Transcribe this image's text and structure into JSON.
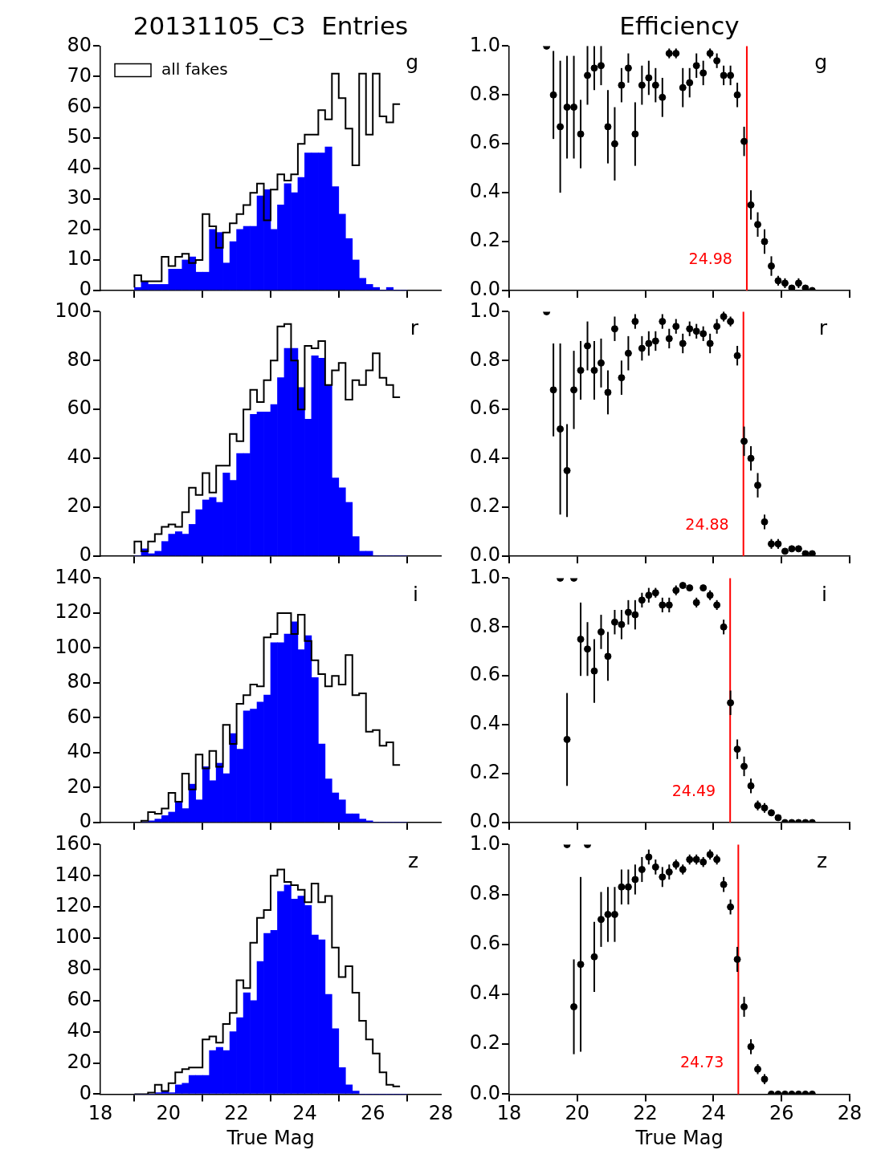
{
  "chart_data": [
    {
      "type": "histogram",
      "title": "20131105_C3  Entries",
      "bins": [
        19.0,
        19.2,
        19.4,
        19.6,
        19.8,
        20.0,
        20.2,
        20.4,
        20.6,
        20.8,
        21.0,
        21.2,
        21.4,
        21.6,
        21.8,
        22.0,
        22.2,
        22.4,
        22.6,
        22.8,
        23.0,
        23.2,
        23.4,
        23.6,
        23.8,
        24.0,
        24.2,
        24.4,
        24.6,
        24.8,
        25.0,
        25.2,
        25.4,
        25.6,
        25.8,
        26.0,
        26.2,
        26.4,
        26.6,
        26.8,
        27.0
      ],
      "series": [
        {
          "name": "all fakes",
          "type": "step",
          "color": "#000000",
          "x": [
            19.0,
            19.2,
            19.4,
            19.6,
            19.8,
            20.0,
            20.2,
            20.4,
            20.6,
            20.8,
            21.0,
            21.2,
            21.4,
            21.6,
            21.8,
            22.0,
            22.2,
            22.4,
            22.6,
            22.8,
            23.0,
            23.2,
            23.4,
            23.6,
            23.8,
            24.0,
            24.2,
            24.4,
            24.6,
            24.8,
            25.0,
            25.2,
            25.4,
            25.6,
            25.8,
            26.0,
            26.2,
            26.4,
            26.6,
            26.8
          ],
          "values": [
            1,
            5,
            3,
            3,
            3,
            11,
            8,
            11,
            12,
            9,
            10,
            25,
            21,
            14,
            19,
            22,
            25,
            28,
            32,
            35,
            23,
            33,
            38,
            36,
            38,
            48,
            51,
            51,
            59,
            56,
            71,
            63,
            53,
            41,
            71,
            51,
            71,
            57,
            55,
            61
          ]
        },
        {
          "color": "#0000ff",
          "values": [
            1,
            3,
            2,
            2,
            2,
            7,
            7,
            10,
            11,
            6,
            6,
            20,
            19,
            9,
            16,
            20,
            21,
            21,
            31,
            33,
            20,
            28,
            35,
            32,
            37,
            45,
            45,
            45,
            47,
            34,
            25,
            17,
            10,
            4,
            2,
            1,
            0,
            1,
            0,
            0
          ]
        }
      ],
      "xlim": [
        18,
        28
      ],
      "xticks": [
        18,
        20,
        22,
        24,
        26,
        28
      ],
      "ylim": [
        0,
        80
      ],
      "yticks": [
        0,
        10,
        20,
        30,
        40,
        50,
        60,
        70,
        80
      ],
      "tick_labels": "y",
      "legend": "top left",
      "annotations": [
        "g"
      ]
    },
    {
      "type": "scatter",
      "title": "Efficiency",
      "x": [
        19.1,
        19.3,
        19.5,
        19.7,
        19.9,
        20.1,
        20.3,
        20.5,
        20.7,
        20.9,
        21.1,
        21.3,
        21.5,
        21.7,
        21.9,
        22.1,
        22.3,
        22.5,
        22.7,
        22.9,
        23.1,
        23.3,
        23.5,
        23.7,
        23.9,
        24.1,
        24.3,
        24.5,
        24.7,
        24.9,
        25.1,
        25.3,
        25.5,
        25.7,
        25.9,
        26.1,
        26.3,
        26.5,
        26.7,
        26.9
      ],
      "series": [
        {
          "color": "#000000",
          "values": [
            1.0,
            0.8,
            0.67,
            0.75,
            0.75,
            0.64,
            0.88,
            0.91,
            0.92,
            0.67,
            0.6,
            0.84,
            0.91,
            0.64,
            0.84,
            0.87,
            0.84,
            0.79,
            0.97,
            0.97,
            0.83,
            0.85,
            0.92,
            0.89,
            0.97,
            0.94,
            0.88,
            0.88,
            0.8,
            0.61,
            0.35,
            0.27,
            0.2,
            0.1,
            0.04,
            0.03,
            0.01,
            0.03,
            0.01,
            0.0
          ],
          "errors": [
            null,
            0.18,
            0.27,
            0.21,
            0.21,
            0.14,
            0.12,
            0.09,
            0.08,
            0.15,
            0.15,
            0.07,
            0.06,
            0.13,
            0.08,
            0.07,
            0.07,
            0.08,
            0.02,
            0.02,
            0.08,
            0.06,
            0.05,
            0.05,
            0.02,
            0.03,
            0.04,
            0.04,
            0.05,
            0.06,
            0.06,
            0.05,
            0.05,
            0.04,
            0.02,
            0.02,
            0.01,
            0.02,
            null,
            null
          ]
        }
      ],
      "xlim": [
        18,
        28
      ],
      "xticks": [
        18,
        20,
        22,
        24,
        26,
        28
      ],
      "ylim": [
        0,
        1
      ],
      "yticks": [
        {
          "value": 0,
          "label": "0.0"
        },
        {
          "value": 0.2,
          "label": "0.2"
        },
        {
          "value": 0.4,
          "label": "0.4"
        },
        {
          "value": 0.6,
          "label": "0.6"
        },
        {
          "value": 0.8,
          "label": "0.8"
        },
        {
          "value": 1,
          "label": "1.0"
        }
      ],
      "tick_labels": "y",
      "marker": "circle",
      "ref_lines": [
        {
          "axis": "x",
          "value": 24.98,
          "label": "24.98",
          "color": "#ff0000"
        }
      ],
      "annotations": [
        "g"
      ]
    },
    {
      "type": "histogram",
      "bins": [
        19.0,
        19.2,
        19.4,
        19.6,
        19.8,
        20.0,
        20.2,
        20.4,
        20.6,
        20.8,
        21.0,
        21.2,
        21.4,
        21.6,
        21.8,
        22.0,
        22.2,
        22.4,
        22.6,
        22.8,
        23.0,
        23.2,
        23.4,
        23.6,
        23.8,
        24.0,
        24.2,
        24.4,
        24.6,
        24.8,
        25.0,
        25.2,
        25.4,
        25.6,
        25.8,
        26.0,
        26.2,
        26.4,
        26.6,
        26.8,
        27.0
      ],
      "series": [
        {
          "type": "step",
          "color": "#000000",
          "x": [
            19.0,
            19.2,
            19.4,
            19.6,
            19.8,
            20.0,
            20.2,
            20.4,
            20.6,
            20.8,
            21.0,
            21.2,
            21.4,
            21.6,
            21.8,
            22.0,
            22.2,
            22.4,
            22.6,
            22.8,
            23.0,
            23.2,
            23.4,
            23.6,
            23.8,
            24.0,
            24.2,
            24.4,
            24.6,
            24.8,
            25.0,
            25.2,
            25.4,
            25.6,
            25.8,
            26.0,
            26.2,
            26.4,
            26.6,
            26.8
          ],
          "values": [
            1,
            6,
            2,
            6,
            9,
            12,
            13,
            12,
            18,
            28,
            25,
            34,
            26,
            37,
            37,
            50,
            47,
            60,
            68,
            63,
            72,
            80,
            94,
            95,
            80,
            60,
            86,
            85,
            88,
            70,
            76,
            79,
            64,
            72,
            70,
            76,
            83,
            73,
            70,
            65
          ]
        },
        {
          "color": "#0000ff",
          "values": [
            0,
            3,
            1,
            2,
            6,
            9,
            10,
            9,
            13,
            19,
            23,
            24,
            22,
            34,
            31,
            42,
            42,
            58,
            59,
            59,
            62,
            73,
            85,
            85,
            69,
            56,
            82,
            81,
            70,
            32,
            28,
            22,
            8,
            2,
            2,
            0,
            0,
            0,
            0,
            0
          ]
        }
      ],
      "xlim": [
        18,
        28
      ],
      "xticks": [
        18,
        20,
        22,
        24,
        26,
        28
      ],
      "ylim": [
        0,
        100
      ],
      "yticks": [
        0,
        20,
        40,
        60,
        80,
        100
      ],
      "tick_labels": "y",
      "annotations": [
        "r"
      ]
    },
    {
      "type": "scatter",
      "x": [
        19.1,
        19.3,
        19.5,
        19.7,
        19.9,
        20.1,
        20.3,
        20.5,
        20.7,
        20.9,
        21.1,
        21.3,
        21.5,
        21.7,
        21.9,
        22.1,
        22.3,
        22.5,
        22.7,
        22.9,
        23.1,
        23.3,
        23.5,
        23.7,
        23.9,
        24.1,
        24.3,
        24.5,
        24.7,
        24.9,
        25.1,
        25.3,
        25.5,
        25.7,
        25.9,
        26.1,
        26.3,
        26.5,
        26.7,
        26.9
      ],
      "series": [
        {
          "color": "#000000",
          "values": [
            1.0,
            0.68,
            0.52,
            0.35,
            0.68,
            0.76,
            0.86,
            0.76,
            0.79,
            0.67,
            0.93,
            0.73,
            0.83,
            0.96,
            0.85,
            0.87,
            0.88,
            0.96,
            0.89,
            0.94,
            0.87,
            0.93,
            0.92,
            0.91,
            0.87,
            0.94,
            0.98,
            0.96,
            0.82,
            0.47,
            0.4,
            0.29,
            0.14,
            0.05,
            0.05,
            0.02,
            0.03,
            0.03,
            0.01,
            0.01
          ],
          "errors": [
            null,
            0.19,
            0.35,
            0.19,
            0.16,
            0.12,
            0.1,
            0.12,
            0.1,
            0.09,
            0.05,
            0.07,
            0.07,
            0.03,
            0.05,
            0.05,
            0.04,
            0.03,
            0.04,
            0.03,
            0.04,
            0.03,
            0.03,
            0.03,
            0.04,
            0.03,
            0.02,
            0.02,
            0.04,
            0.06,
            0.05,
            0.05,
            0.03,
            0.02,
            0.02,
            null,
            null,
            null,
            null,
            null
          ]
        }
      ],
      "xlim": [
        18,
        28
      ],
      "xticks": [
        18,
        20,
        22,
        24,
        26,
        28
      ],
      "ylim": [
        0,
        1
      ],
      "yticks": [
        {
          "value": 0,
          "label": "0.0"
        },
        {
          "value": 0.2,
          "label": "0.2"
        },
        {
          "value": 0.4,
          "label": "0.4"
        },
        {
          "value": 0.6,
          "label": "0.6"
        },
        {
          "value": 0.8,
          "label": "0.8"
        },
        {
          "value": 1,
          "label": "1.0"
        }
      ],
      "tick_labels": "y",
      "marker": "circle",
      "ref_lines": [
        {
          "axis": "x",
          "value": 24.88,
          "label": "24.88",
          "color": "#ff0000"
        }
      ],
      "annotations": [
        "r"
      ]
    },
    {
      "type": "histogram",
      "bins": [
        19.0,
        19.2,
        19.4,
        19.6,
        19.8,
        20.0,
        20.2,
        20.4,
        20.6,
        20.8,
        21.0,
        21.2,
        21.4,
        21.6,
        21.8,
        22.0,
        22.2,
        22.4,
        22.6,
        22.8,
        23.0,
        23.2,
        23.4,
        23.6,
        23.8,
        24.0,
        24.2,
        24.4,
        24.6,
        24.8,
        25.0,
        25.2,
        25.4,
        25.6,
        25.8,
        26.0,
        26.2,
        26.4,
        26.6,
        26.8,
        27.0
      ],
      "series": [
        {
          "type": "step",
          "color": "#000000",
          "x": [
            19.0,
            19.2,
            19.4,
            19.6,
            19.8,
            20.0,
            20.2,
            20.4,
            20.6,
            20.8,
            21.0,
            21.2,
            21.4,
            21.6,
            21.8,
            22.0,
            22.2,
            22.4,
            22.6,
            22.8,
            23.0,
            23.2,
            23.4,
            23.6,
            23.8,
            24.0,
            24.2,
            24.4,
            24.6,
            24.8,
            25.0,
            25.2,
            25.4,
            25.6,
            25.8,
            26.0,
            26.2,
            26.4,
            26.6,
            26.8
          ],
          "values": [
            0,
            0,
            1,
            6,
            5,
            8,
            17,
            12,
            28,
            19,
            39,
            31,
            41,
            32,
            56,
            45,
            68,
            73,
            79,
            78,
            106,
            108,
            120,
            120,
            108,
            119,
            104,
            93,
            85,
            78,
            84,
            79,
            96,
            73,
            74,
            52,
            53,
            44,
            46,
            33
          ]
        },
        {
          "color": "#0000ff",
          "values": [
            0,
            0,
            1,
            2,
            4,
            6,
            12,
            8,
            22,
            13,
            32,
            24,
            34,
            28,
            51,
            42,
            64,
            65,
            69,
            73,
            103,
            103,
            108,
            115,
            99,
            107,
            83,
            45,
            25,
            17,
            13,
            5,
            5,
            2,
            1,
            0,
            0,
            0,
            0,
            0
          ]
        }
      ],
      "xlim": [
        18,
        28
      ],
      "xticks": [
        18,
        20,
        22,
        24,
        26,
        28
      ],
      "ylim": [
        0,
        140
      ],
      "yticks": [
        0,
        20,
        40,
        60,
        80,
        100,
        120,
        140
      ],
      "tick_labels": "y",
      "annotations": [
        "i"
      ]
    },
    {
      "type": "scatter",
      "x": [
        19.5,
        19.7,
        19.9,
        20.1,
        20.3,
        20.5,
        20.7,
        20.9,
        21.1,
        21.3,
        21.5,
        21.7,
        21.9,
        22.1,
        22.3,
        22.5,
        22.7,
        22.9,
        23.1,
        23.3,
        23.5,
        23.7,
        23.9,
        24.1,
        24.3,
        24.5,
        24.7,
        24.9,
        25.1,
        25.3,
        25.5,
        25.7,
        25.9,
        26.1,
        26.3,
        26.5,
        26.7,
        26.9
      ],
      "series": [
        {
          "color": "#000000",
          "values": [
            1.0,
            0.34,
            1.0,
            0.75,
            0.71,
            0.62,
            0.78,
            0.68,
            0.82,
            0.81,
            0.86,
            0.85,
            0.91,
            0.93,
            0.94,
            0.89,
            0.89,
            0.95,
            0.97,
            0.96,
            0.9,
            0.96,
            0.93,
            0.89,
            0.8,
            0.49,
            0.3,
            0.23,
            0.15,
            0.07,
            0.06,
            0.04,
            0.02,
            0,
            0,
            0,
            0,
            0
          ],
          "errors": [
            null,
            0.19,
            null,
            0.15,
            0.11,
            0.13,
            0.07,
            0.1,
            0.05,
            0.06,
            0.05,
            0.06,
            0.03,
            0.03,
            0.02,
            0.03,
            0.03,
            0.02,
            0.01,
            0.01,
            0.02,
            0.01,
            0.02,
            0.02,
            0.03,
            0.05,
            0.04,
            0.04,
            0.03,
            0.02,
            0.02,
            0.01,
            null,
            null,
            null,
            null,
            null,
            null
          ]
        }
      ],
      "xlim": [
        18,
        28
      ],
      "xticks": [
        18,
        20,
        22,
        24,
        26,
        28
      ],
      "ylim": [
        0,
        1
      ],
      "yticks": [
        {
          "value": 0,
          "label": "0.0"
        },
        {
          "value": 0.2,
          "label": "0.2"
        },
        {
          "value": 0.4,
          "label": "0.4"
        },
        {
          "value": 0.6,
          "label": "0.6"
        },
        {
          "value": 0.8,
          "label": "0.8"
        },
        {
          "value": 1,
          "label": "1.0"
        }
      ],
      "tick_labels": "y",
      "marker": "circle",
      "ref_lines": [
        {
          "axis": "x",
          "value": 24.49,
          "label": "24.49",
          "color": "#ff0000"
        }
      ],
      "annotations": [
        "i"
      ]
    },
    {
      "type": "histogram",
      "xlabel": "True Mag",
      "bins": [
        19.0,
        19.2,
        19.4,
        19.6,
        19.8,
        20.0,
        20.2,
        20.4,
        20.6,
        20.8,
        21.0,
        21.2,
        21.4,
        21.6,
        21.8,
        22.0,
        22.2,
        22.4,
        22.6,
        22.8,
        23.0,
        23.2,
        23.4,
        23.6,
        23.8,
        24.0,
        24.2,
        24.4,
        24.6,
        24.8,
        25.0,
        25.2,
        25.4,
        25.6,
        25.8,
        26.0,
        26.2,
        26.4,
        26.6,
        26.8,
        27.0
      ],
      "series": [
        {
          "type": "step",
          "color": "#000000",
          "x": [
            19.0,
            19.2,
            19.4,
            19.6,
            19.8,
            20.0,
            20.2,
            20.4,
            20.6,
            20.8,
            21.0,
            21.2,
            21.4,
            21.6,
            21.8,
            22.0,
            22.2,
            22.4,
            22.6,
            22.8,
            23.0,
            23.2,
            23.4,
            23.6,
            23.8,
            24.0,
            24.2,
            24.4,
            24.6,
            24.8,
            25.0,
            25.2,
            25.4,
            25.6,
            25.8,
            26.0,
            26.2,
            26.4,
            26.6,
            26.8
          ],
          "values": [
            0,
            0,
            0,
            1,
            6,
            2,
            7,
            14,
            16,
            17,
            17,
            35,
            37,
            33,
            45,
            52,
            73,
            68,
            97,
            113,
            118,
            140,
            144,
            136,
            134,
            131,
            123,
            135,
            123,
            127,
            94,
            75,
            82,
            65,
            47,
            35,
            26,
            14,
            6,
            5
          ]
        },
        {
          "color": "#0000ff",
          "values": [
            0,
            0,
            0,
            1,
            2,
            1,
            6,
            7,
            12,
            12,
            12,
            28,
            30,
            28,
            40,
            49,
            65,
            60,
            85,
            103,
            105,
            130,
            134,
            125,
            127,
            121,
            102,
            99,
            64,
            42,
            17,
            6,
            2,
            0,
            0,
            0,
            0,
            0,
            0,
            0
          ]
        }
      ],
      "xlim": [
        18,
        28
      ],
      "xticks": [
        18,
        20,
        22,
        24,
        26,
        28
      ],
      "ylim": [
        0,
        160
      ],
      "yticks": [
        0,
        20,
        40,
        60,
        80,
        100,
        120,
        140,
        160
      ],
      "annotations": [
        "z"
      ]
    },
    {
      "type": "scatter",
      "xlabel": "True Mag",
      "x": [
        19.7,
        19.9,
        20.1,
        20.3,
        20.5,
        20.7,
        20.9,
        21.1,
        21.3,
        21.5,
        21.7,
        21.9,
        22.1,
        22.3,
        22.5,
        22.7,
        22.9,
        23.1,
        23.3,
        23.5,
        23.7,
        23.9,
        24.1,
        24.3,
        24.5,
        24.7,
        24.9,
        25.1,
        25.3,
        25.5,
        25.7,
        25.9,
        26.1,
        26.3,
        26.5,
        26.7,
        26.9
      ],
      "series": [
        {
          "color": "#000000",
          "values": [
            1.0,
            0.35,
            0.52,
            1.0,
            0.55,
            0.7,
            0.72,
            0.72,
            0.83,
            0.83,
            0.86,
            0.9,
            0.95,
            0.91,
            0.87,
            0.89,
            0.92,
            0.9,
            0.94,
            0.94,
            0.93,
            0.96,
            0.94,
            0.84,
            0.75,
            0.54,
            0.35,
            0.19,
            0.1,
            0.06,
            0,
            0,
            0,
            0,
            0,
            0,
            0
          ],
          "errors": [
            null,
            0.19,
            0.35,
            null,
            0.14,
            0.11,
            0.11,
            0.11,
            0.07,
            0.07,
            0.06,
            0.05,
            0.03,
            0.03,
            0.04,
            0.03,
            0.02,
            0.02,
            0.02,
            0.02,
            0.02,
            0.02,
            0.02,
            0.03,
            0.03,
            0.05,
            0.04,
            0.03,
            0.02,
            0.02,
            null,
            null,
            null,
            null,
            null,
            null,
            null
          ]
        }
      ],
      "xlim": [
        18,
        28
      ],
      "xticks": [
        18,
        20,
        22,
        24,
        26,
        28
      ],
      "ylim": [
        0,
        1
      ],
      "yticks": [
        {
          "value": 0,
          "label": "0.0"
        },
        {
          "value": 0.2,
          "label": "0.2"
        },
        {
          "value": 0.4,
          "label": "0.4"
        },
        {
          "value": 0.6,
          "label": "0.6"
        },
        {
          "value": 0.8,
          "label": "0.8"
        },
        {
          "value": 1,
          "label": "1.0"
        }
      ],
      "marker": "circle",
      "ref_lines": [
        {
          "axis": "x",
          "value": 24.73,
          "label": "24.73",
          "color": "#ff0000"
        }
      ],
      "annotations": [
        "z"
      ]
    }
  ]
}
